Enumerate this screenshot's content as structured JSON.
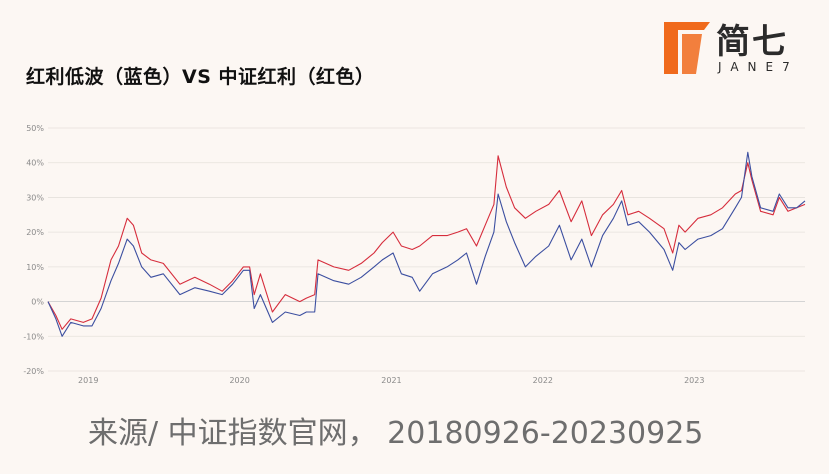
{
  "title": "红利低波（蓝色）VS 中证红利（红色）",
  "logo": {
    "brand": "简七",
    "sub": "JANE7",
    "accent_color": "#f06a1c"
  },
  "source": "来源/ 中证指数官网， 20180926-20230925",
  "chart_data": {
    "type": "line",
    "xlabel": "",
    "ylabel": "",
    "ylim": [
      -20,
      50
    ],
    "yticks": [
      -20,
      -10,
      0,
      10,
      20,
      30,
      40,
      50
    ],
    "ytick_labels": [
      "-20%",
      "-10%",
      "0%",
      "10%",
      "20%",
      "30%",
      "40%",
      "50%"
    ],
    "xlim": [
      "2018-09-26",
      "2023-09-25"
    ],
    "xticks": [
      "2019-01-01",
      "2020-01-01",
      "2021-01-01",
      "2022-01-01",
      "2023-01-01"
    ],
    "xtick_labels": [
      "2019",
      "2020",
      "2021",
      "2022",
      "2023"
    ],
    "grid": "horizontal",
    "series": [
      {
        "color": "#d62d3c",
        "points": [
          [
            "2018-09-26",
            0
          ],
          [
            "2018-10-15",
            -4
          ],
          [
            "2018-10-30",
            -8
          ],
          [
            "2018-11-20",
            -5
          ],
          [
            "2018-12-20",
            -6
          ],
          [
            "2019-01-10",
            -5
          ],
          [
            "2019-02-01",
            1
          ],
          [
            "2019-02-25",
            12
          ],
          [
            "2019-03-15",
            16
          ],
          [
            "2019-04-05",
            24
          ],
          [
            "2019-04-20",
            22
          ],
          [
            "2019-05-10",
            14
          ],
          [
            "2019-06-01",
            12
          ],
          [
            "2019-07-01",
            11
          ],
          [
            "2019-08-10",
            5
          ],
          [
            "2019-09-15",
            7
          ],
          [
            "2019-10-20",
            5
          ],
          [
            "2019-11-20",
            3
          ],
          [
            "2019-12-15",
            6
          ],
          [
            "2020-01-10",
            10
          ],
          [
            "2020-01-25",
            10
          ],
          [
            "2020-02-05",
            2
          ],
          [
            "2020-02-20",
            8
          ],
          [
            "2020-03-20",
            -3
          ],
          [
            "2020-04-20",
            2
          ],
          [
            "2020-05-25",
            0
          ],
          [
            "2020-06-10",
            1
          ],
          [
            "2020-06-30",
            2
          ],
          [
            "2020-07-08",
            12
          ],
          [
            "2020-08-15",
            10
          ],
          [
            "2020-09-20",
            9
          ],
          [
            "2020-10-20",
            11
          ],
          [
            "2020-11-20",
            14
          ],
          [
            "2020-12-10",
            17
          ],
          [
            "2021-01-05",
            20
          ],
          [
            "2021-01-25",
            16
          ],
          [
            "2021-02-20",
            15
          ],
          [
            "2021-03-10",
            16
          ],
          [
            "2021-04-10",
            19
          ],
          [
            "2021-05-15",
            19
          ],
          [
            "2021-06-10",
            20
          ],
          [
            "2021-07-01",
            21
          ],
          [
            "2021-07-25",
            16
          ],
          [
            "2021-08-15",
            22
          ],
          [
            "2021-09-05",
            28
          ],
          [
            "2021-09-15",
            42
          ],
          [
            "2021-10-05",
            33
          ],
          [
            "2021-10-25",
            27
          ],
          [
            "2021-11-20",
            24
          ],
          [
            "2021-12-15",
            26
          ],
          [
            "2022-01-15",
            28
          ],
          [
            "2022-02-10",
            32
          ],
          [
            "2022-03-10",
            23
          ],
          [
            "2022-04-05",
            29
          ],
          [
            "2022-04-28",
            19
          ],
          [
            "2022-05-25",
            25
          ],
          [
            "2022-06-20",
            28
          ],
          [
            "2022-07-10",
            32
          ],
          [
            "2022-07-25",
            25
          ],
          [
            "2022-08-20",
            26
          ],
          [
            "2022-09-15",
            24
          ],
          [
            "2022-10-20",
            21
          ],
          [
            "2022-11-10",
            14
          ],
          [
            "2022-11-25",
            22
          ],
          [
            "2022-12-10",
            20
          ],
          [
            "2023-01-10",
            24
          ],
          [
            "2023-02-10",
            25
          ],
          [
            "2023-03-10",
            27
          ],
          [
            "2023-04-10",
            31
          ],
          [
            "2023-04-25",
            32
          ],
          [
            "2023-05-10",
            40
          ],
          [
            "2023-05-20",
            35
          ],
          [
            "2023-06-10",
            26
          ],
          [
            "2023-07-10",
            25
          ],
          [
            "2023-07-25",
            30
          ],
          [
            "2023-08-15",
            26
          ],
          [
            "2023-09-05",
            27
          ],
          [
            "2023-09-25",
            28
          ]
        ]
      },
      {
        "color": "#3c4fa0",
        "points": [
          [
            "2018-09-26",
            0
          ],
          [
            "2018-10-15",
            -5
          ],
          [
            "2018-10-30",
            -10
          ],
          [
            "2018-11-20",
            -6
          ],
          [
            "2018-12-20",
            -7
          ],
          [
            "2019-01-10",
            -7
          ],
          [
            "2019-02-01",
            -2
          ],
          [
            "2019-02-25",
            6
          ],
          [
            "2019-03-15",
            11
          ],
          [
            "2019-04-05",
            18
          ],
          [
            "2019-04-20",
            16
          ],
          [
            "2019-05-10",
            10
          ],
          [
            "2019-06-01",
            7
          ],
          [
            "2019-07-01",
            8
          ],
          [
            "2019-08-10",
            2
          ],
          [
            "2019-09-15",
            4
          ],
          [
            "2019-10-20",
            3
          ],
          [
            "2019-11-20",
            2
          ],
          [
            "2019-12-15",
            5
          ],
          [
            "2020-01-10",
            9
          ],
          [
            "2020-01-25",
            9
          ],
          [
            "2020-02-05",
            -2
          ],
          [
            "2020-02-20",
            2
          ],
          [
            "2020-03-20",
            -6
          ],
          [
            "2020-04-20",
            -3
          ],
          [
            "2020-05-25",
            -4
          ],
          [
            "2020-06-10",
            -3
          ],
          [
            "2020-06-30",
            -3
          ],
          [
            "2020-07-08",
            8
          ],
          [
            "2020-08-15",
            6
          ],
          [
            "2020-09-20",
            5
          ],
          [
            "2020-10-20",
            7
          ],
          [
            "2020-11-20",
            10
          ],
          [
            "2020-12-10",
            12
          ],
          [
            "2021-01-05",
            14
          ],
          [
            "2021-01-25",
            8
          ],
          [
            "2021-02-20",
            7
          ],
          [
            "2021-03-10",
            3
          ],
          [
            "2021-04-10",
            8
          ],
          [
            "2021-05-15",
            10
          ],
          [
            "2021-06-10",
            12
          ],
          [
            "2021-07-01",
            14
          ],
          [
            "2021-07-25",
            5
          ],
          [
            "2021-08-15",
            13
          ],
          [
            "2021-09-05",
            20
          ],
          [
            "2021-09-15",
            31
          ],
          [
            "2021-10-05",
            23
          ],
          [
            "2021-10-25",
            17
          ],
          [
            "2021-11-20",
            10
          ],
          [
            "2021-12-15",
            13
          ],
          [
            "2022-01-15",
            16
          ],
          [
            "2022-02-10",
            22
          ],
          [
            "2022-03-10",
            12
          ],
          [
            "2022-04-05",
            18
          ],
          [
            "2022-04-28",
            10
          ],
          [
            "2022-05-25",
            19
          ],
          [
            "2022-06-20",
            24
          ],
          [
            "2022-07-10",
            29
          ],
          [
            "2022-07-25",
            22
          ],
          [
            "2022-08-20",
            23
          ],
          [
            "2022-09-15",
            20
          ],
          [
            "2022-10-20",
            15
          ],
          [
            "2022-11-10",
            9
          ],
          [
            "2022-11-25",
            17
          ],
          [
            "2022-12-10",
            15
          ],
          [
            "2023-01-10",
            18
          ],
          [
            "2023-02-10",
            19
          ],
          [
            "2023-03-10",
            21
          ],
          [
            "2023-04-10",
            27
          ],
          [
            "2023-04-25",
            30
          ],
          [
            "2023-05-10",
            43
          ],
          [
            "2023-05-20",
            36
          ],
          [
            "2023-06-10",
            27
          ],
          [
            "2023-07-10",
            26
          ],
          [
            "2023-07-25",
            31
          ],
          [
            "2023-08-15",
            27
          ],
          [
            "2023-09-05",
            27
          ],
          [
            "2023-09-25",
            29
          ]
        ]
      }
    ]
  }
}
